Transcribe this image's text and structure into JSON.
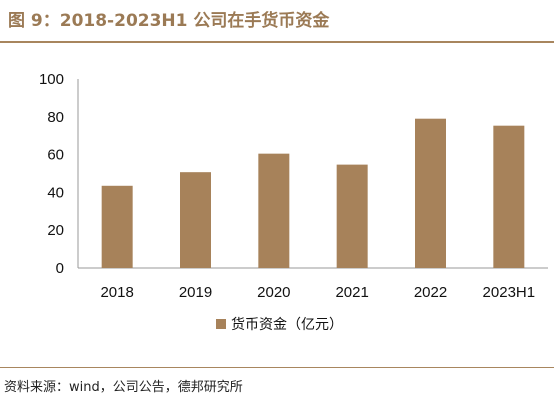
{
  "title": "图 9：2018-2023H1 公司在手货币资金",
  "source": "资料来源：wind，公司公告，德邦研究所",
  "colors": {
    "bar": "#a7825a",
    "rule": "#a8865e",
    "title": "#9b7a55"
  },
  "chart_data": {
    "type": "bar",
    "categories": [
      "2018",
      "2019",
      "2020",
      "2021",
      "2022",
      "2023H1"
    ],
    "series": [
      {
        "name": "货币资金（亿元）",
        "values": [
          43.5,
          50.7,
          60.5,
          54.7,
          79.0,
          75.3
        ]
      }
    ],
    "ylim": [
      0,
      100
    ],
    "yticks": [
      0,
      20,
      40,
      60,
      80,
      100
    ],
    "grid": false,
    "legend_position": "bottom"
  }
}
